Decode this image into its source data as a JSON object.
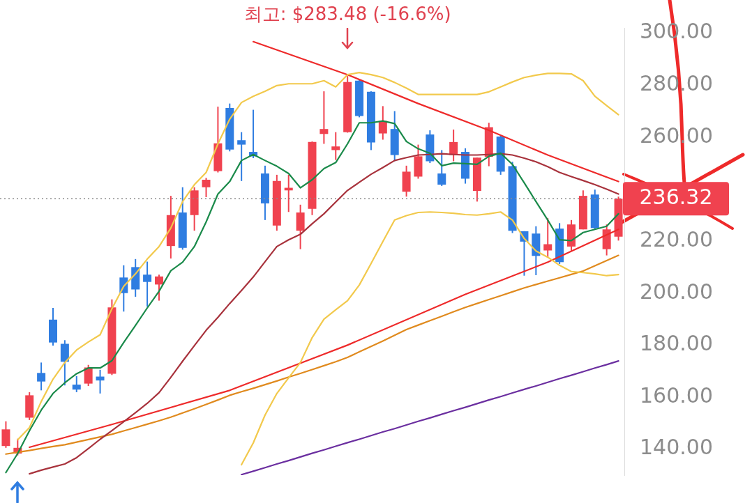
{
  "chart_data": {
    "type": "candlestick",
    "categories": [
      null,
      null,
      null,
      null,
      null,
      null,
      null,
      null,
      null,
      null,
      null,
      null,
      null,
      null,
      null,
      null,
      null,
      null,
      null,
      null,
      null,
      null,
      null,
      null,
      null,
      null,
      null,
      null,
      null,
      null,
      null,
      null,
      null,
      null,
      null,
      null,
      null,
      null,
      null,
      null,
      null,
      null,
      null,
      null,
      null,
      null,
      null,
      null,
      null,
      null,
      null,
      null,
      null
    ],
    "ohlc": [
      [
        141.2,
        150.7,
        140.5,
        147.6
      ],
      [
        138.3,
        144,
        137.6,
        140.5
      ],
      [
        152.1,
        161.9,
        151.2,
        160.7
      ],
      [
        169.3,
        173.3,
        162.6,
        166.0
      ],
      [
        189.8,
        194.3,
        179.8,
        181.0
      ],
      [
        180.5,
        181.9,
        164.5,
        173.6
      ],
      [
        164.8,
        168.1,
        161.9,
        162.9
      ],
      [
        165.2,
        172.4,
        164.3,
        171.4
      ],
      [
        167.9,
        170.5,
        161.4,
        166.4
      ],
      [
        169.0,
        197.6,
        168.5,
        194.5
      ],
      [
        206.0,
        210.7,
        192.9,
        200.0
      ],
      [
        210.0,
        213.1,
        198.6,
        201.4
      ],
      [
        207.1,
        212.1,
        194.8,
        204.3
      ],
      [
        203.3,
        207.1,
        197.1,
        206.4
      ],
      [
        218.1,
        237.4,
        213.3,
        230.0
      ],
      [
        231.0,
        240.7,
        216.7,
        217.4
      ],
      [
        230.0,
        240.7,
        224.0,
        239.5
      ],
      [
        240.7,
        244.3,
        236.9,
        243.6
      ],
      [
        246.9,
        271.7,
        246.4,
        257.6
      ],
      [
        271.2,
        272.9,
        254.5,
        255.2
      ],
      [
        258.8,
        261.9,
        243.1,
        257.1
      ],
      [
        254.3,
        270.5,
        251.9,
        252.6
      ],
      [
        246.0,
        249.0,
        228.1,
        234.5
      ],
      [
        226.0,
        245.5,
        224.0,
        243.1
      ],
      [
        239.5,
        245.5,
        231.2,
        240.5
      ],
      [
        224.0,
        234.0,
        216.9,
        231.0
      ],
      [
        232.4,
        258.3,
        230.0,
        258.1
      ],
      [
        261.2,
        277.6,
        257.4,
        263.1
      ],
      [
        255.0,
        261.9,
        251.2,
        256.4
      ],
      [
        261.9,
        283.48,
        261.7,
        281.2
      ],
      [
        281.7,
        282.1,
        267.6,
        268.1
      ],
      [
        277.4,
        277.6,
        255.0,
        257.9
      ],
      [
        261.4,
        271.9,
        259.0,
        266.2
      ],
      [
        263.1,
        270.0,
        250.7,
        253.1
      ],
      [
        239.0,
        249.0,
        237.1,
        246.7
      ],
      [
        244.8,
        257.1,
        244.0,
        252.6
      ],
      [
        261.0,
        262.6,
        250.0,
        250.7
      ],
      [
        246.0,
        255.0,
        241.2,
        241.7
      ],
      [
        253.1,
        262.9,
        250.7,
        258.1
      ],
      [
        254.3,
        255.7,
        242.1,
        244.0
      ],
      [
        239.3,
        252.1,
        235.2,
        252.1
      ],
      [
        252.4,
        265.5,
        248.8,
        263.8
      ],
      [
        260.2,
        260.5,
        245.5,
        246.7
      ],
      [
        248.8,
        250.5,
        223.1,
        224.0
      ],
      [
        223.8,
        223.8,
        206.7,
        219.8
      ],
      [
        222.9,
        225.7,
        206.9,
        214.3
      ],
      [
        216.4,
        228.8,
        213.8,
        218.8
      ],
      [
        224.8,
        226.9,
        211.2,
        211.9
      ],
      [
        217.9,
        228.1,
        216.2,
        226.4
      ],
      [
        224.5,
        239.5,
        224.5,
        237.4
      ],
      [
        237.9,
        239.8,
        224.3,
        225.0
      ],
      [
        216.9,
        226.4,
        214.5,
        224.5
      ],
      [
        221.7,
        237.1,
        220.2,
        236.32
      ]
    ],
    "colors": [
      "#f0424f",
      "#f0424f",
      "#f0424f",
      "#2f7de1",
      "#2f7de1",
      "#2f7de1",
      "#2f7de1",
      "#f0424f",
      "#2f7de1",
      "#f0424f",
      "#2f7de1",
      "#2f7de1",
      "#2f7de1",
      "#f0424f",
      "#f0424f",
      "#2f7de1",
      "#f0424f",
      "#f0424f",
      "#f0424f",
      "#2f7de1",
      "#2f7de1",
      "#2f7de1",
      "#2f7de1",
      "#f0424f",
      "#f0424f",
      "#f0424f",
      "#f0424f",
      "#f0424f",
      "#f0424f",
      "#f0424f",
      "#2f7de1",
      "#2f7de1",
      "#f0424f",
      "#2f7de1",
      "#f0424f",
      "#f0424f",
      "#2f7de1",
      "#2f7de1",
      "#f0424f",
      "#2f7de1",
      "#f0424f",
      "#f0424f",
      "#2f7de1",
      "#2f7de1",
      "#2f7de1",
      "#2f7de1",
      "#f0424f",
      "#2f7de1",
      "#f0424f",
      "#f0424f",
      "#2f7de1",
      "#f0424f",
      "#f0424f"
    ],
    "series": [
      {
        "type": "line",
        "color": "#1a8a4a",
        "values": [
          131,
          138.3,
          147.1,
          155.0,
          161.4,
          165.5,
          169.0,
          171.2,
          171.2,
          174.0,
          181.0,
          187.6,
          194.3,
          200.7,
          208.6,
          211.9,
          217.9,
          227.4,
          238.1,
          242.9,
          251.0,
          253.3,
          251.0,
          248.8,
          246.0,
          240.5,
          243.6,
          247.9,
          250.2,
          257.4,
          265.5,
          265.5,
          266.2,
          265.2,
          258.3,
          255.5,
          253.8,
          249.0,
          250.0,
          249.8,
          249.5,
          252.6,
          253.8,
          249.5,
          242.4,
          235.2,
          228.1,
          220.5,
          220.2,
          223.3,
          224.5,
          225.7,
          230.5
        ]
      },
      {
        "type": "line",
        "color": "#f2c94c",
        "values": [
          null,
          143.6,
          148.3,
          158.3,
          166.9,
          173.3,
          178.1,
          181.2,
          184.0,
          194.0,
          202.6,
          207.4,
          213.1,
          217.9,
          225.0,
          235.2,
          241.7,
          246.4,
          257.4,
          266.9,
          273.3,
          275.7,
          277.6,
          279.8,
          280.5,
          280.5,
          280.5,
          281.7,
          279.3,
          284.0,
          284.8,
          284.0,
          282.9,
          281.0,
          278.8,
          276.4,
          276.4,
          276.4,
          276.4,
          276.4,
          276.4,
          277.4,
          279.3,
          281.2,
          282.9,
          283.8,
          284.5,
          284.5,
          284.3,
          281.7,
          275.7,
          272.1,
          268.6
        ]
      },
      {
        "type": "line",
        "color": "#f2c94c",
        "values": [
          null,
          null,
          null,
          null,
          null,
          null,
          null,
          null,
          null,
          null,
          null,
          null,
          null,
          null,
          null,
          null,
          null,
          null,
          null,
          null,
          134.0,
          142.4,
          153.1,
          161.4,
          167.4,
          173.3,
          182.9,
          190.0,
          193.6,
          197.1,
          203.1,
          211.4,
          219.8,
          228.1,
          229.8,
          231.0,
          231.2,
          231.0,
          230.7,
          230.2,
          230.0,
          230.5,
          231.2,
          228.1,
          221.0,
          216.2,
          213.8,
          210.7,
          208.3,
          207.9,
          207.4,
          206.7,
          207.1
        ]
      },
      {
        "type": "line",
        "color": "#a8323c",
        "values": [
          null,
          null,
          130.5,
          131.9,
          133.1,
          134.3,
          136.7,
          140.2,
          143.8,
          147.1,
          150.5,
          154.0,
          157.6,
          161.7,
          167.6,
          173.8,
          179.8,
          185.7,
          190.7,
          196.0,
          201.0,
          206.2,
          212.1,
          217.9,
          220.5,
          222.6,
          226.7,
          230.5,
          235.0,
          239.5,
          242.6,
          245.7,
          248.3,
          251.0,
          252.1,
          253.1,
          253.3,
          253.6,
          253.3,
          253.1,
          253.1,
          253.3,
          253.6,
          253.1,
          251.9,
          250.5,
          248.6,
          246.4,
          244.8,
          243.3,
          241.7,
          240.0,
          238.1
        ]
      },
      {
        "type": "line",
        "color": "#e08a1e",
        "values": [
          138.1,
          138.8,
          139.5,
          140.3,
          141.0,
          141.7,
          142.7,
          143.7,
          144.7,
          145.7,
          147.0,
          148.3,
          149.6,
          150.9,
          152.3,
          153.9,
          155.5,
          157.2,
          158.9,
          160.7,
          162.1,
          163.4,
          164.8,
          166.2,
          167.7,
          169.1,
          170.6,
          172.1,
          173.6,
          175.3,
          177.4,
          179.5,
          181.6,
          183.8,
          186.0,
          187.7,
          189.4,
          191.1,
          192.8,
          194.5,
          196.0,
          197.5,
          199.0,
          200.5,
          202.0,
          203.3,
          204.6,
          205.9,
          207.2,
          208.5,
          210.5,
          212.5,
          214.5
        ]
      },
      {
        "type": "line",
        "color": "#6b2fa0",
        "values": [
          null,
          null,
          null,
          null,
          null,
          null,
          null,
          null,
          null,
          null,
          null,
          null,
          null,
          null,
          null,
          null,
          null,
          null,
          null,
          null,
          130.2,
          131.5,
          132.9,
          134.3,
          135.6,
          137.0,
          138.4,
          139.7,
          141.1,
          142.5,
          143.8,
          145.2,
          146.6,
          147.9,
          149.3,
          150.7,
          152.0,
          153.4,
          154.8,
          156.1,
          157.5,
          158.9,
          160.2,
          161.6,
          163.0,
          164.3,
          165.7,
          167.1,
          168.4,
          169.8,
          171.2,
          172.5,
          173.9
        ]
      },
      {
        "type": "line",
        "color": "#ee2a2a",
        "values": [
          null,
          null,
          null,
          null,
          null,
          null,
          null,
          null,
          null,
          null,
          null,
          null,
          null,
          null,
          null,
          null,
          null,
          null,
          null,
          null,
          null,
          296.7,
          null,
          null,
          null,
          null,
          null,
          null,
          null,
          284.0,
          null,
          null,
          null,
          null,
          null,
          272.9,
          null,
          null,
          null,
          null,
          null,
          262.6,
          null,
          null,
          null,
          null,
          253.1,
          null,
          null,
          null,
          null,
          null,
          242.9
        ]
      },
      {
        "type": "line",
        "color": "#ee2a2a",
        "values": [
          null,
          null,
          140.7,
          null,
          null,
          null,
          null,
          null,
          null,
          149.5,
          null,
          null,
          null,
          null,
          null,
          null,
          null,
          null,
          null,
          162.6,
          null,
          null,
          null,
          null,
          null,
          null,
          null,
          null,
          null,
          180.0,
          null,
          null,
          null,
          null,
          null,
          null,
          null,
          null,
          null,
          199.5,
          null,
          null,
          null,
          null,
          null,
          null,
          211.9,
          null,
          null,
          null,
          null,
          null,
          224.5
        ]
      }
    ],
    "ylim": [
      130,
      302
    ],
    "yticks": [
      {
        "value": 140,
        "label": "140.00"
      },
      {
        "value": 160,
        "label": "160.00"
      },
      {
        "value": 180,
        "label": "180.00"
      },
      {
        "value": 200,
        "label": "200.00"
      },
      {
        "value": 220,
        "label": "220.00"
      },
      {
        "value": 260,
        "label": "260.00"
      },
      {
        "value": 280,
        "label": "280.00"
      },
      {
        "value": 300,
        "label": "300.00"
      }
    ],
    "tick_labels": "y",
    "grid": false,
    "legend": false,
    "ref_lines": [
      {
        "axis": "y",
        "value": 236.32,
        "label": "236.32",
        "color": "#8a8a8a",
        "line_style": "dotted"
      }
    ],
    "annotations": [
      {
        "text": "최고: $283.48 (-16.6%)",
        "y": 283.48
      }
    ]
  }
}
